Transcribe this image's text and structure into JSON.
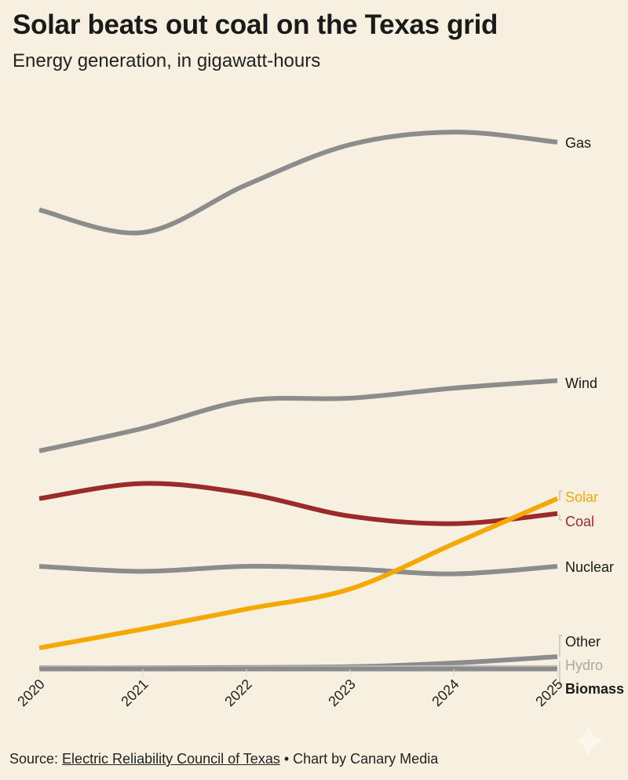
{
  "chart_data": {
    "type": "line",
    "title": "Solar beats out coal on the Texas grid",
    "subtitle": "Energy generation, in gigawatt-hours",
    "xlabel": "",
    "ylabel": "",
    "x": [
      "2020",
      "2021",
      "2022",
      "2023",
      "2024",
      "2025"
    ],
    "ylim": [
      0,
      220000
    ],
    "grid": false,
    "legend": "direct labels at right end of lines",
    "series": [
      {
        "name": "Gas",
        "color": "#8c8c8c",
        "label_color": "#1a1a1a",
        "values": [
          183000,
          174000,
          193000,
          209000,
          214000,
          210000
        ]
      },
      {
        "name": "Wind",
        "color": "#8c8c8c",
        "label_color": "#1a1a1a",
        "values": [
          87000,
          96000,
          107000,
          108000,
          112000,
          115000
        ]
      },
      {
        "name": "Coal",
        "color": "#9b2a2a",
        "label_color": "#9b2a2a",
        "values": [
          68000,
          74000,
          70000,
          61000,
          58000,
          62000
        ]
      },
      {
        "name": "Nuclear",
        "color": "#8c8c8c",
        "label_color": "#1a1a1a",
        "values": [
          41000,
          39000,
          41000,
          40000,
          38000,
          41000
        ]
      },
      {
        "name": "Other",
        "color": "#8c8c8c",
        "label_color": "#1a1a1a",
        "values": [
          500,
          500,
          700,
          1000,
          2500,
          5000
        ]
      },
      {
        "name": "Hydro",
        "color": "#c4c4c4",
        "label_color": "#a8a8a8",
        "values": [
          300,
          300,
          400,
          500,
          700,
          700
        ]
      },
      {
        "name": "Biomass",
        "color": "#8c8c8c",
        "label_color": "#1a1a1a",
        "label_bold": true,
        "values": [
          100,
          100,
          100,
          100,
          100,
          100
        ]
      },
      {
        "name": "Solar",
        "color": "#f5a800",
        "label_color": "#f5a800",
        "values": [
          8500,
          16000,
          24000,
          32000,
          50000,
          68000
        ]
      }
    ]
  },
  "footer": {
    "source_prefix": "Source: ",
    "source_link": "Electric Reliability Council of Texas",
    "credit": " • Chart by Canary Media"
  }
}
